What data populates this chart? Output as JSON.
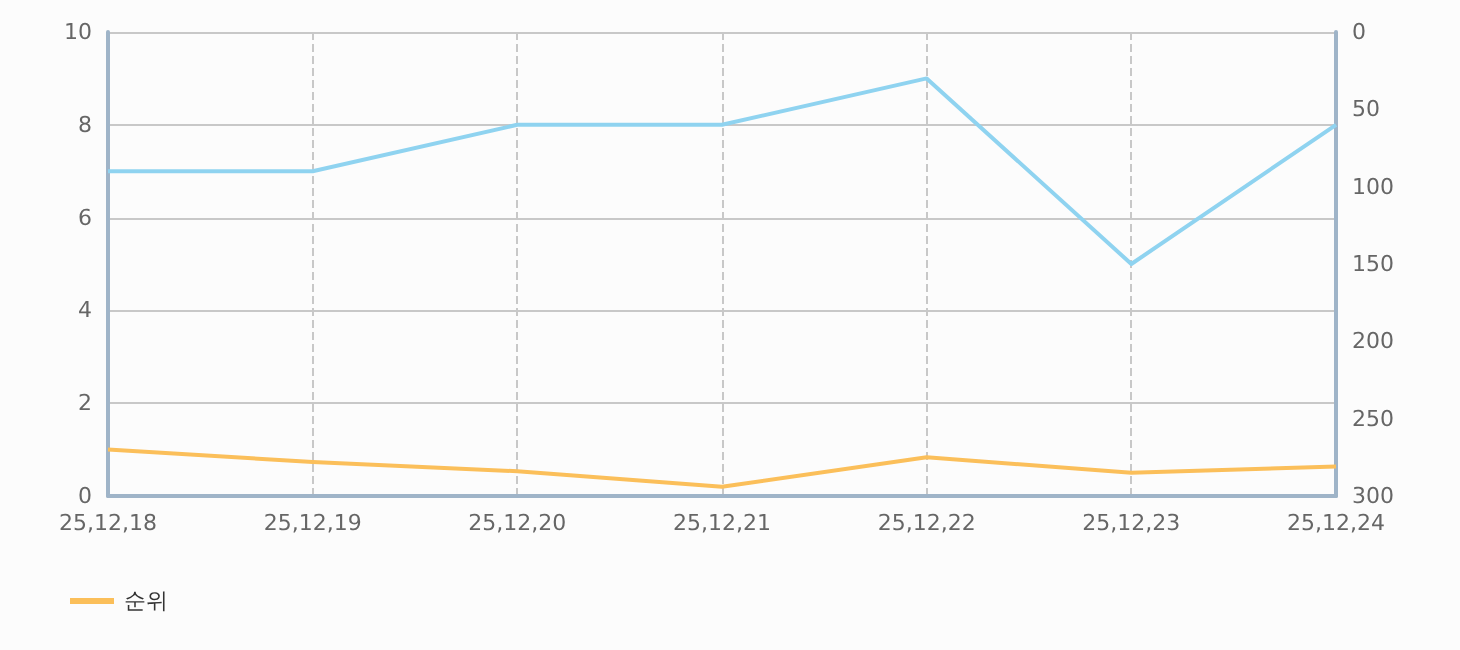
{
  "chart_data": {
    "type": "line",
    "categories": [
      "25,12,18",
      "25,12,19",
      "25,12,20",
      "25,12,21",
      "25,12,22",
      "25,12,23",
      "25,12,24"
    ],
    "series": [
      {
        "color": "#8fd3f0",
        "values": [
          7,
          7,
          8,
          8,
          9,
          5,
          8
        ]
      },
      {
        "name": "순위",
        "color": "#fbbf5a",
        "axis": "y2",
        "values": [
          270,
          278,
          284,
          294,
          275,
          285,
          281
        ]
      }
    ],
    "ylim": [
      0,
      10
    ],
    "yticks": [
      0,
      2,
      4,
      6,
      8,
      10
    ],
    "y2lim": [
      300,
      0
    ],
    "y2ticks": [
      0,
      50,
      100,
      150,
      200,
      250,
      300
    ],
    "grid": true,
    "legend": "bottom left",
    "marker": "none",
    "line_style": "solid"
  }
}
